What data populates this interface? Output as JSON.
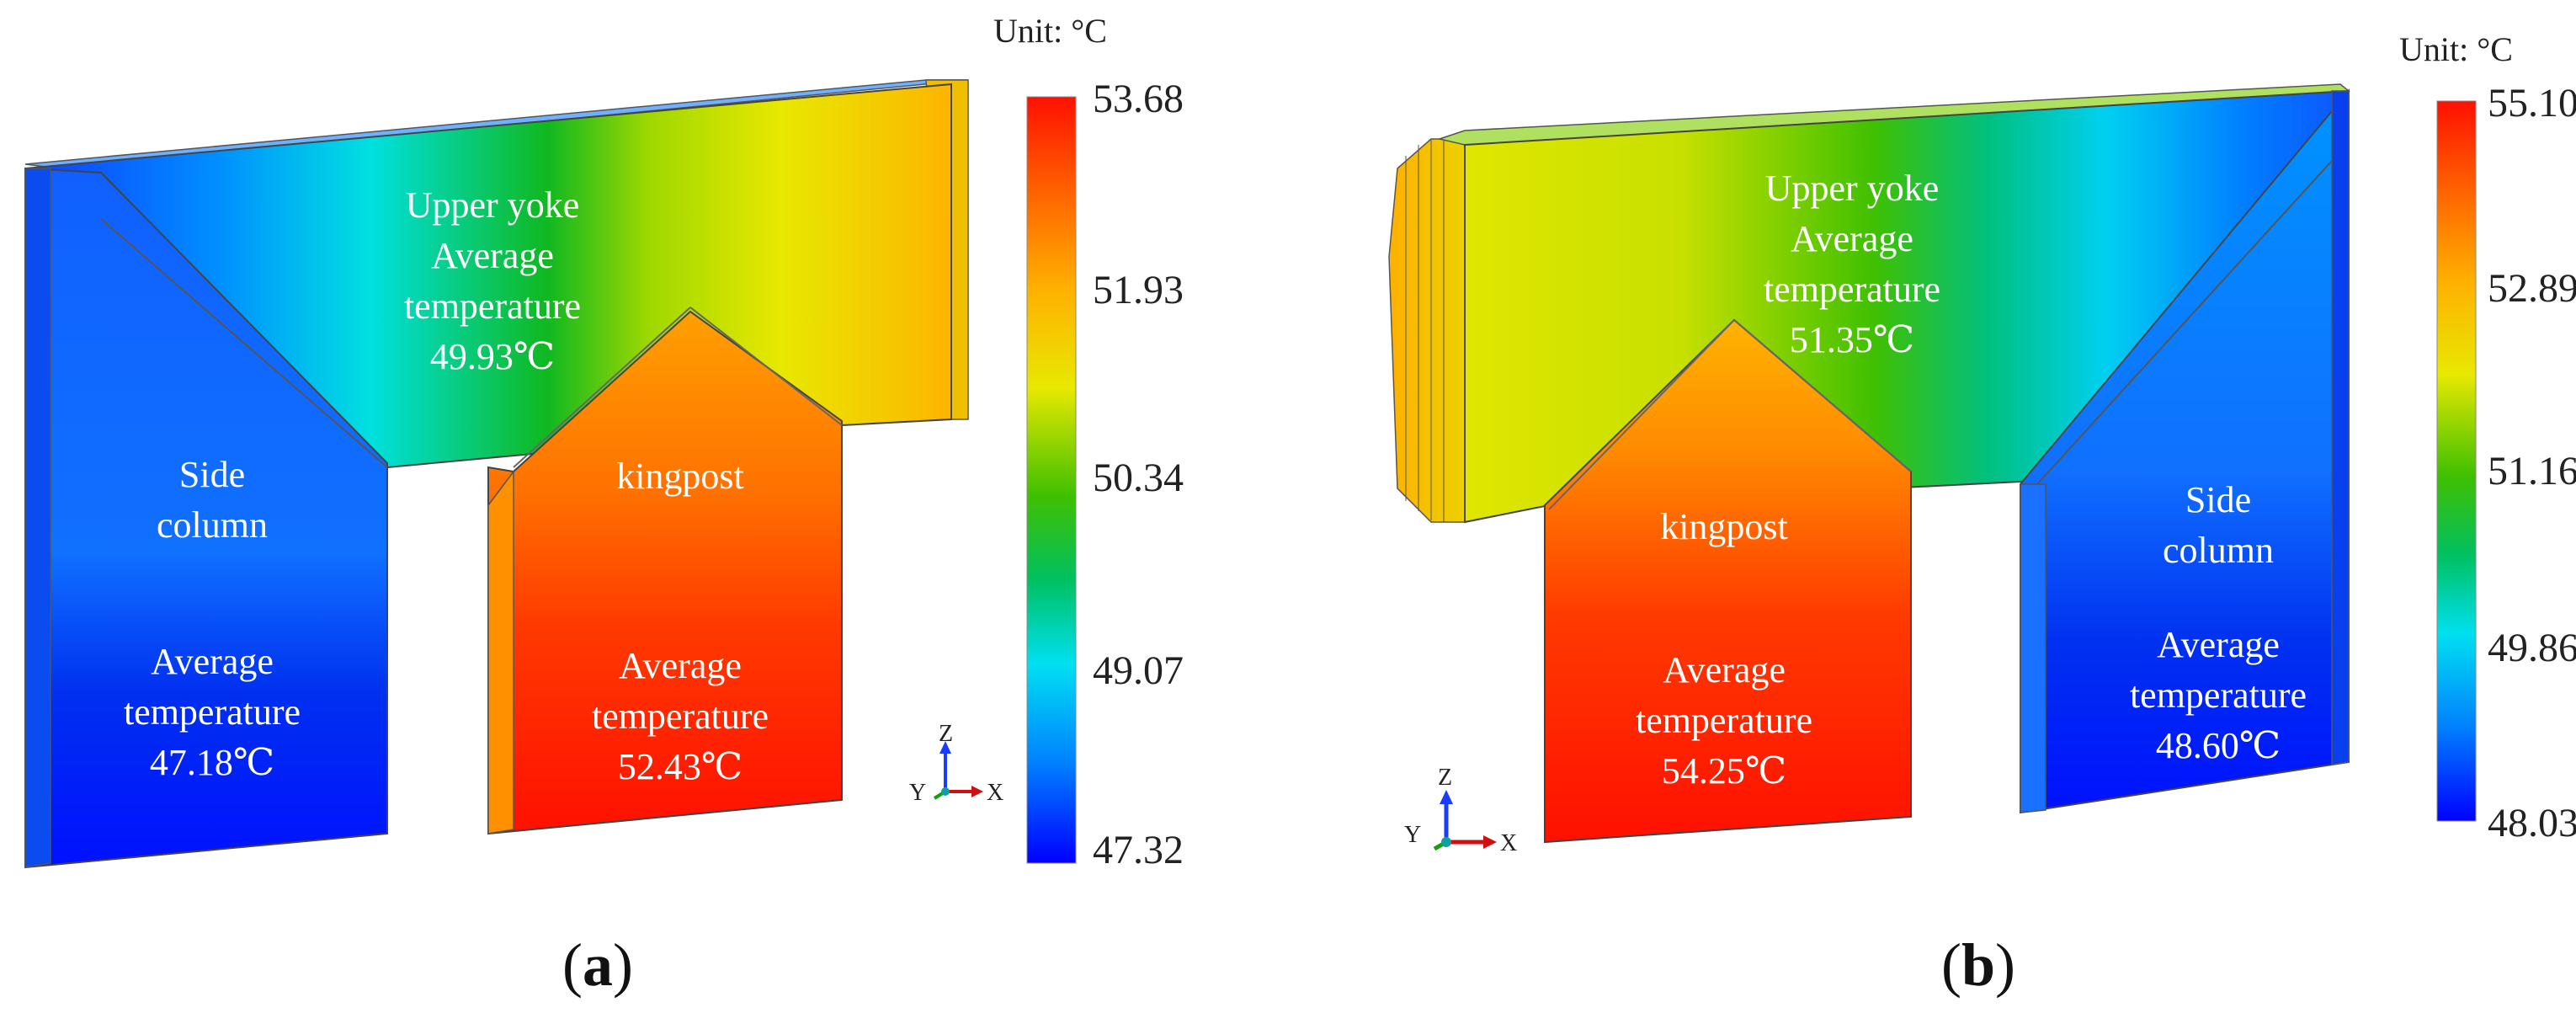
{
  "panels": [
    {
      "id": "a",
      "caption": {
        "open": "(",
        "letter": "a",
        "close": ")"
      },
      "unit": "Unit: °C",
      "colorbar_ticks": [
        "53.68",
        "51.93",
        "50.34",
        "49.07",
        "47.32"
      ],
      "regions": {
        "upper_yoke": [
          "Upper yoke",
          "Average",
          "temperature",
          "49.93℃"
        ],
        "side_column": [
          "Side",
          "column"
        ],
        "side_column_avg": [
          "Average",
          "temperature",
          "47.18℃"
        ],
        "kingpost": [
          "kingpost"
        ],
        "kingpost_avg": [
          "Average",
          "temperature",
          "52.43℃"
        ]
      },
      "axes": {
        "z": "Z",
        "y": "Y",
        "x": "X"
      }
    },
    {
      "id": "b",
      "caption": {
        "open": "(",
        "letter": "b",
        "close": ")"
      },
      "unit": "Unit: °C",
      "colorbar_ticks": [
        "55.10",
        "52.89",
        "51.16",
        "49.86",
        "48.03"
      ],
      "regions": {
        "upper_yoke": [
          "Upper yoke",
          "Average",
          "temperature",
          "51.35℃"
        ],
        "kingpost": [
          "kingpost"
        ],
        "kingpost_avg": [
          "Average",
          "temperature",
          "54.25℃"
        ],
        "side_column": [
          "Side",
          "column"
        ],
        "side_column_avg": [
          "Average",
          "temperature",
          "48.60℃"
        ]
      },
      "axes": {
        "z": "Z",
        "y": "Y",
        "x": "X"
      }
    }
  ],
  "colors": {
    "jet": [
      "#0000ff",
      "#0060ff",
      "#00c0ff",
      "#00e0e0",
      "#00c040",
      "#40c000",
      "#a0d800",
      "#e8e800",
      "#ffc000",
      "#ff8000",
      "#ff4000",
      "#ff1000"
    ]
  }
}
